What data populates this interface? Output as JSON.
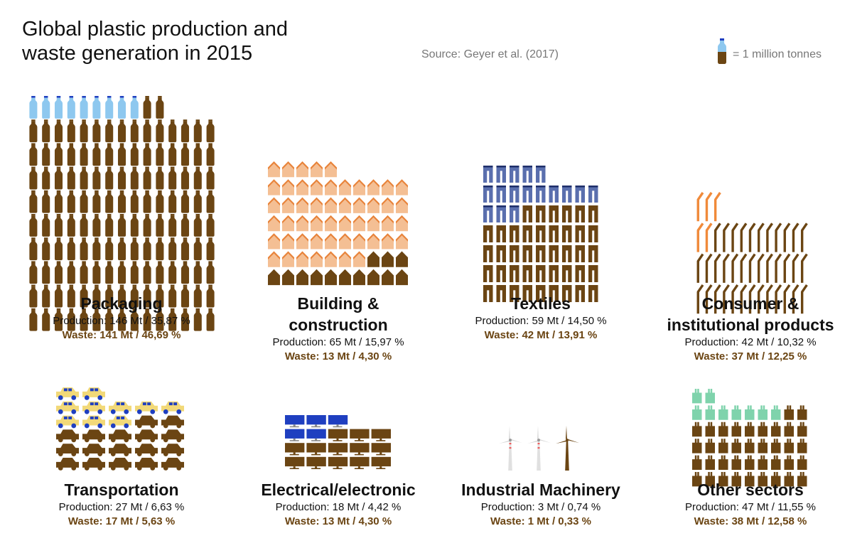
{
  "title_line1": "Global plastic production and",
  "title_line2": "waste generation in 2015",
  "source": "Source: Geyer et al. (2017)",
  "legend": {
    "icon": "bottle-icon",
    "text": "= 1 million tonnes"
  },
  "colors": {
    "waste": "#6b4513",
    "text": "#111111",
    "muted": "#777777"
  },
  "chart_data": {
    "type": "pictogram",
    "unit": "1 million tonnes",
    "sectors": [
      {
        "key": "packaging",
        "name_lines": [
          "Packaging"
        ],
        "production": "Production: 146 Mt / 35,87 %",
        "waste": "Waste: 141 Mt / 46,69 %",
        "production_mt": 146,
        "waste_mt": 141,
        "icon": "bottle-icon",
        "color": "#8ec8ef"
      },
      {
        "key": "building",
        "name_lines": [
          "Building &",
          "construction"
        ],
        "production": "Production: 65 Mt / 15,97 %",
        "waste": "Waste: 13 Mt / 4,30 %",
        "production_mt": 65,
        "waste_mt": 13,
        "icon": "house-icon",
        "color": "#f4bf94"
      },
      {
        "key": "textiles",
        "name_lines": [
          "Textiles"
        ],
        "production": "Production: 59 Mt / 14,50 %",
        "waste": "Waste: 42 Mt / 13,91 %",
        "production_mt": 59,
        "waste_mt": 42,
        "icon": "trousers-icon",
        "color": "#5a6fae"
      },
      {
        "key": "consumer",
        "name_lines": [
          "Consumer &",
          "institutional products"
        ],
        "production": "Production: 42 Mt / 10,32 %",
        "waste": "Waste: 37 Mt / 12,25 %",
        "production_mt": 42,
        "waste_mt": 37,
        "icon": "straw-icon",
        "color": "#f08a3a"
      },
      {
        "key": "transportation",
        "name_lines": [
          "Transportation"
        ],
        "production": "Production: 27 Mt / 6,63 %",
        "waste": "Waste: 17 Mt / 5,63 %",
        "production_mt": 27,
        "waste_mt": 17,
        "icon": "car-icon",
        "color": "#f2d978"
      },
      {
        "key": "electrical",
        "name_lines": [
          "Electrical/electronic"
        ],
        "production": "Production: 18 Mt / 4,42 %",
        "waste": "Waste: 13 Mt / 4,30 %",
        "production_mt": 18,
        "waste_mt": 13,
        "icon": "monitor-icon",
        "color": "#1f3fc0"
      },
      {
        "key": "industrial",
        "name_lines": [
          "Industrial Machinery"
        ],
        "production": "Production: 3 Mt / 0,74 %",
        "waste": "Waste: 1 Mt / 0,33 %",
        "production_mt": 3,
        "waste_mt": 1,
        "icon": "wind-turbine-icon",
        "color": "#e8e8e8"
      },
      {
        "key": "other",
        "name_lines": [
          "Other sectors"
        ],
        "production": "Production: 47 Mt / 11,55 %",
        "waste": "Waste: 38 Mt / 12,58 %",
        "production_mt": 47,
        "waste_mt": 38,
        "icon": "shopping-bag-icon",
        "color": "#7fd3ac"
      }
    ]
  }
}
